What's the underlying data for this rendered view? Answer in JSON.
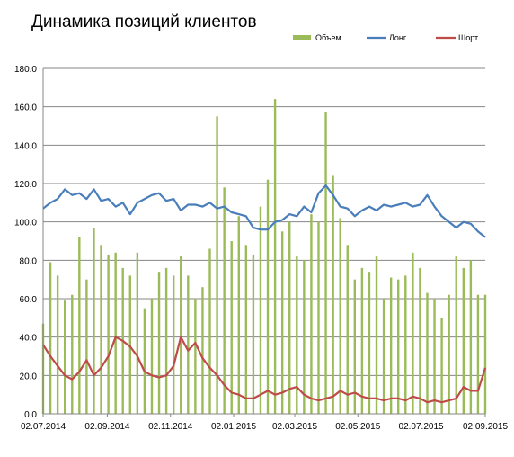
{
  "chart_data": {
    "type": "bar+line",
    "title": "Динамика позиций клиентов",
    "xlabel": "",
    "ylabel": "",
    "ylim": [
      0,
      180
    ],
    "y_ticks": [
      "0.0",
      "20.0",
      "40.0",
      "60.0",
      "80.0",
      "100.0",
      "120.0",
      "140.0",
      "160.0",
      "180.0"
    ],
    "x_tick_labels": [
      "02.07.2014",
      "02.09.2014",
      "02.11.2014",
      "02.01.2015",
      "02.03.2015",
      "02.05.2015",
      "02.07.2015",
      "02.09.2015"
    ],
    "x_range": [
      "02.07.2014",
      "02.09.2015"
    ],
    "grid": "horizontal",
    "legend_position": "top-right",
    "series": [
      {
        "name": "Объем",
        "kind": "bar",
        "color": "#9bbb59",
        "points": [
          [
            "2014-07-02",
            47
          ],
          [
            "2014-07-09",
            79
          ],
          [
            "2014-07-16",
            72
          ],
          [
            "2014-07-23",
            59
          ],
          [
            "2014-07-30",
            62
          ],
          [
            "2014-08-06",
            92
          ],
          [
            "2014-08-13",
            70
          ],
          [
            "2014-08-20",
            97
          ],
          [
            "2014-08-27",
            88
          ],
          [
            "2014-09-03",
            83
          ],
          [
            "2014-09-10",
            84
          ],
          [
            "2014-09-17",
            76
          ],
          [
            "2014-09-24",
            72
          ],
          [
            "2014-10-01",
            84
          ],
          [
            "2014-10-08",
            55
          ],
          [
            "2014-10-15",
            60
          ],
          [
            "2014-10-22",
            74
          ],
          [
            "2014-10-29",
            76
          ],
          [
            "2014-11-05",
            72
          ],
          [
            "2014-11-12",
            82
          ],
          [
            "2014-11-19",
            72
          ],
          [
            "2014-11-26",
            60
          ],
          [
            "2014-12-03",
            66
          ],
          [
            "2014-12-10",
            86
          ],
          [
            "2014-12-17",
            155
          ],
          [
            "2014-12-24",
            118
          ],
          [
            "2014-12-31",
            90
          ],
          [
            "2015-01-07",
            103
          ],
          [
            "2015-01-14",
            88
          ],
          [
            "2015-01-21",
            83
          ],
          [
            "2015-01-28",
            108
          ],
          [
            "2015-02-04",
            122
          ],
          [
            "2015-02-11",
            164
          ],
          [
            "2015-02-18",
            95
          ],
          [
            "2015-02-25",
            100
          ],
          [
            "2015-03-04",
            82
          ],
          [
            "2015-03-11",
            80
          ],
          [
            "2015-03-18",
            104
          ],
          [
            "2015-03-25",
            100
          ],
          [
            "2015-04-01",
            157
          ],
          [
            "2015-04-08",
            124
          ],
          [
            "2015-04-15",
            102
          ],
          [
            "2015-04-22",
            88
          ],
          [
            "2015-04-29",
            70
          ],
          [
            "2015-05-06",
            76
          ],
          [
            "2015-05-13",
            74
          ],
          [
            "2015-05-20",
            82
          ],
          [
            "2015-05-27",
            60
          ],
          [
            "2015-06-03",
            71
          ],
          [
            "2015-06-10",
            70
          ],
          [
            "2015-06-17",
            72
          ],
          [
            "2015-06-24",
            84
          ],
          [
            "2015-07-01",
            76
          ],
          [
            "2015-07-08",
            63
          ],
          [
            "2015-07-15",
            60
          ],
          [
            "2015-07-22",
            50
          ],
          [
            "2015-07-29",
            62
          ],
          [
            "2015-08-05",
            82
          ],
          [
            "2015-08-12",
            76
          ],
          [
            "2015-08-19",
            80
          ],
          [
            "2015-08-26",
            62
          ],
          [
            "2015-09-02",
            62
          ]
        ]
      },
      {
        "name": "Лонг",
        "kind": "line",
        "color": "#4a7ebb",
        "points": [
          [
            "2014-07-02",
            107
          ],
          [
            "2014-07-09",
            110
          ],
          [
            "2014-07-16",
            112
          ],
          [
            "2014-07-23",
            117
          ],
          [
            "2014-07-30",
            114
          ],
          [
            "2014-08-06",
            115
          ],
          [
            "2014-08-13",
            112
          ],
          [
            "2014-08-20",
            117
          ],
          [
            "2014-08-27",
            111
          ],
          [
            "2014-09-03",
            112
          ],
          [
            "2014-09-10",
            108
          ],
          [
            "2014-09-17",
            110
          ],
          [
            "2014-09-24",
            104
          ],
          [
            "2014-10-01",
            110
          ],
          [
            "2014-10-08",
            112
          ],
          [
            "2014-10-15",
            114
          ],
          [
            "2014-10-22",
            115
          ],
          [
            "2014-10-29",
            111
          ],
          [
            "2014-11-05",
            112
          ],
          [
            "2014-11-12",
            106
          ],
          [
            "2014-11-19",
            109
          ],
          [
            "2014-11-26",
            109
          ],
          [
            "2014-12-03",
            108
          ],
          [
            "2014-12-10",
            110
          ],
          [
            "2014-12-17",
            107
          ],
          [
            "2014-12-24",
            108
          ],
          [
            "2014-12-31",
            105
          ],
          [
            "2015-01-07",
            104
          ],
          [
            "2015-01-14",
            103
          ],
          [
            "2015-01-21",
            97
          ],
          [
            "2015-01-28",
            96
          ],
          [
            "2015-02-04",
            96
          ],
          [
            "2015-02-11",
            100
          ],
          [
            "2015-02-18",
            101
          ],
          [
            "2015-02-25",
            104
          ],
          [
            "2015-03-04",
            103
          ],
          [
            "2015-03-11",
            108
          ],
          [
            "2015-03-18",
            105
          ],
          [
            "2015-03-25",
            115
          ],
          [
            "2015-04-01",
            119
          ],
          [
            "2015-04-08",
            114
          ],
          [
            "2015-04-15",
            108
          ],
          [
            "2015-04-22",
            107
          ],
          [
            "2015-04-29",
            103
          ],
          [
            "2015-05-06",
            106
          ],
          [
            "2015-05-13",
            108
          ],
          [
            "2015-05-20",
            106
          ],
          [
            "2015-05-27",
            109
          ],
          [
            "2015-06-03",
            108
          ],
          [
            "2015-06-10",
            109
          ],
          [
            "2015-06-17",
            110
          ],
          [
            "2015-06-24",
            108
          ],
          [
            "2015-07-01",
            109
          ],
          [
            "2015-07-08",
            114
          ],
          [
            "2015-07-15",
            108
          ],
          [
            "2015-07-22",
            103
          ],
          [
            "2015-07-29",
            100
          ],
          [
            "2015-08-05",
            97
          ],
          [
            "2015-08-12",
            100
          ],
          [
            "2015-08-19",
            99
          ],
          [
            "2015-08-26",
            95
          ],
          [
            "2015-09-02",
            92
          ]
        ]
      },
      {
        "name": "Шорт",
        "kind": "line",
        "color": "#be4b48",
        "points": [
          [
            "2014-07-02",
            36
          ],
          [
            "2014-07-09",
            30
          ],
          [
            "2014-07-16",
            25
          ],
          [
            "2014-07-23",
            20
          ],
          [
            "2014-07-30",
            18
          ],
          [
            "2014-08-06",
            22
          ],
          [
            "2014-08-13",
            28
          ],
          [
            "2014-08-20",
            20
          ],
          [
            "2014-08-27",
            24
          ],
          [
            "2014-09-03",
            30
          ],
          [
            "2014-09-10",
            40
          ],
          [
            "2014-09-17",
            38
          ],
          [
            "2014-09-24",
            35
          ],
          [
            "2014-10-01",
            30
          ],
          [
            "2014-10-08",
            22
          ],
          [
            "2014-10-15",
            20
          ],
          [
            "2014-10-22",
            19
          ],
          [
            "2014-10-29",
            20
          ],
          [
            "2014-11-05",
            25
          ],
          [
            "2014-11-12",
            40
          ],
          [
            "2014-11-19",
            33
          ],
          [
            "2014-11-26",
            37
          ],
          [
            "2014-12-03",
            29
          ],
          [
            "2014-12-10",
            24
          ],
          [
            "2014-12-17",
            20
          ],
          [
            "2014-12-24",
            15
          ],
          [
            "2014-12-31",
            11
          ],
          [
            "2015-01-07",
            10
          ],
          [
            "2015-01-14",
            8
          ],
          [
            "2015-01-21",
            8
          ],
          [
            "2015-01-28",
            10
          ],
          [
            "2015-02-04",
            12
          ],
          [
            "2015-02-11",
            10
          ],
          [
            "2015-02-18",
            11
          ],
          [
            "2015-02-25",
            13
          ],
          [
            "2015-03-04",
            14
          ],
          [
            "2015-03-11",
            10
          ],
          [
            "2015-03-18",
            8
          ],
          [
            "2015-03-25",
            7
          ],
          [
            "2015-04-01",
            8
          ],
          [
            "2015-04-08",
            9
          ],
          [
            "2015-04-15",
            12
          ],
          [
            "2015-04-22",
            10
          ],
          [
            "2015-04-29",
            11
          ],
          [
            "2015-05-06",
            9
          ],
          [
            "2015-05-13",
            8
          ],
          [
            "2015-05-20",
            8
          ],
          [
            "2015-05-27",
            7
          ],
          [
            "2015-06-03",
            8
          ],
          [
            "2015-06-10",
            8
          ],
          [
            "2015-06-17",
            7
          ],
          [
            "2015-06-24",
            9
          ],
          [
            "2015-07-01",
            8
          ],
          [
            "2015-07-08",
            6
          ],
          [
            "2015-07-15",
            7
          ],
          [
            "2015-07-22",
            6
          ],
          [
            "2015-07-29",
            7
          ],
          [
            "2015-08-05",
            8
          ],
          [
            "2015-08-12",
            14
          ],
          [
            "2015-08-19",
            12
          ],
          [
            "2015-08-26",
            12
          ],
          [
            "2015-09-02",
            24
          ]
        ]
      }
    ]
  }
}
